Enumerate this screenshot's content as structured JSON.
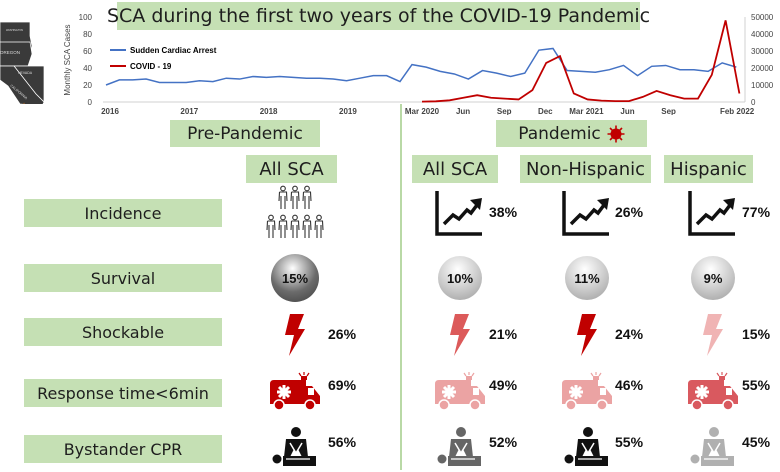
{
  "title": "SCA during the first two years of the COVID-19 Pandemic",
  "map": {
    "states": [
      "WASHINGTON",
      "OREGON",
      "NEVADA",
      "CALIFORNIA"
    ]
  },
  "chart_data": {
    "type": "line",
    "title": "SCA during the first two years of the COVID-19 Pandemic",
    "ylabel": "Monthly SCA Cases",
    "ylim": [
      0,
      100
    ],
    "y2lim": [
      0,
      50000
    ],
    "yticks": [
      "0",
      "20",
      "40",
      "60",
      "80",
      "100"
    ],
    "y2ticks": [
      "0",
      "10000",
      "20000",
      "30000",
      "40000",
      "50000"
    ],
    "xtick_labels_pre": [
      "2016",
      "2017",
      "2018",
      "2019"
    ],
    "xtick_labels_pandemic": [
      {
        "label": "Mar 2020",
        "month_index": 0
      },
      {
        "label": "Jun",
        "month_index": 3
      },
      {
        "label": "Sep",
        "month_index": 6
      },
      {
        "label": "Dec",
        "month_index": 9
      },
      {
        "label": "Mar 2021",
        "month_index": 12
      },
      {
        "label": "Jun",
        "month_index": 15
      },
      {
        "label": "Sep",
        "month_index": 18
      },
      {
        "label": "Feb 2022",
        "month_index": 23
      }
    ],
    "legend": {
      "placement": "top-left"
    },
    "series": [
      {
        "name": "Sudden Cardiac Arrest",
        "color": "#4472c4",
        "axis": "left",
        "pre_pandemic": [
          20,
          26,
          26,
          27,
          23,
          23,
          23,
          25,
          24,
          28,
          27,
          30,
          29,
          30,
          29,
          28,
          28,
          27,
          25,
          28,
          31,
          31,
          24
        ],
        "pandemic": [
          44,
          41,
          36,
          33,
          27,
          37,
          34,
          30,
          34,
          61,
          63,
          37,
          36,
          35,
          38,
          43,
          31,
          42,
          43,
          38,
          38,
          36,
          46,
          41
        ]
      },
      {
        "name": "COVID - 19",
        "color": "#c00000",
        "axis": "right",
        "pandemic": [
          200,
          400,
          1000,
          2500,
          4000,
          2500,
          2000,
          1500,
          7000,
          23000,
          27000,
          5000,
          1500,
          800,
          500,
          500,
          3000,
          6500,
          4000,
          2000,
          2000,
          16000,
          48000,
          5000
        ]
      }
    ]
  },
  "headers": {
    "pre_pandemic": "Pre-Pandemic",
    "pandemic": "Pandemic",
    "pre_all": "All SCA",
    "all": "All SCA",
    "non_hispanic": "Non-Hispanic",
    "hispanic": "Hispanic"
  },
  "colors": {
    "green_box": "#c5e0b4",
    "red": "#c00000"
  },
  "rows": [
    {
      "label": "Incidence",
      "icon": "trend-icon",
      "values": [
        "",
        "38%",
        "26%",
        "77%"
      ],
      "colors": [
        "#222",
        "#111",
        "#111",
        "#111"
      ]
    },
    {
      "label": "Survival",
      "icon": "circle",
      "values": [
        "15%",
        "10%",
        "11%",
        "9%"
      ],
      "colors": [
        "#6b6b6b",
        "#c8c8c8",
        "#c8c8c8",
        "#c8c8c8"
      ]
    },
    {
      "label": "Shockable",
      "icon": "lightning-icon",
      "values": [
        "26%",
        "21%",
        "24%",
        "15%"
      ],
      "colors": [
        "#c00000",
        "#dc5a5a",
        "#c00000",
        "#f0b4b4"
      ]
    },
    {
      "label": "Response time<6min",
      "icon": "ambulance-icon",
      "values": [
        "69%",
        "49%",
        "46%",
        "55%"
      ],
      "colors": [
        "#c00000",
        "#eba3a3",
        "#eba3a3",
        "#d9595f"
      ]
    },
    {
      "label": "Bystander CPR",
      "icon": "cpr-icon",
      "values": [
        "56%",
        "52%",
        "55%",
        "45%"
      ],
      "colors": [
        "#111111",
        "#666666",
        "#111111",
        "#b0b0b0"
      ]
    }
  ]
}
